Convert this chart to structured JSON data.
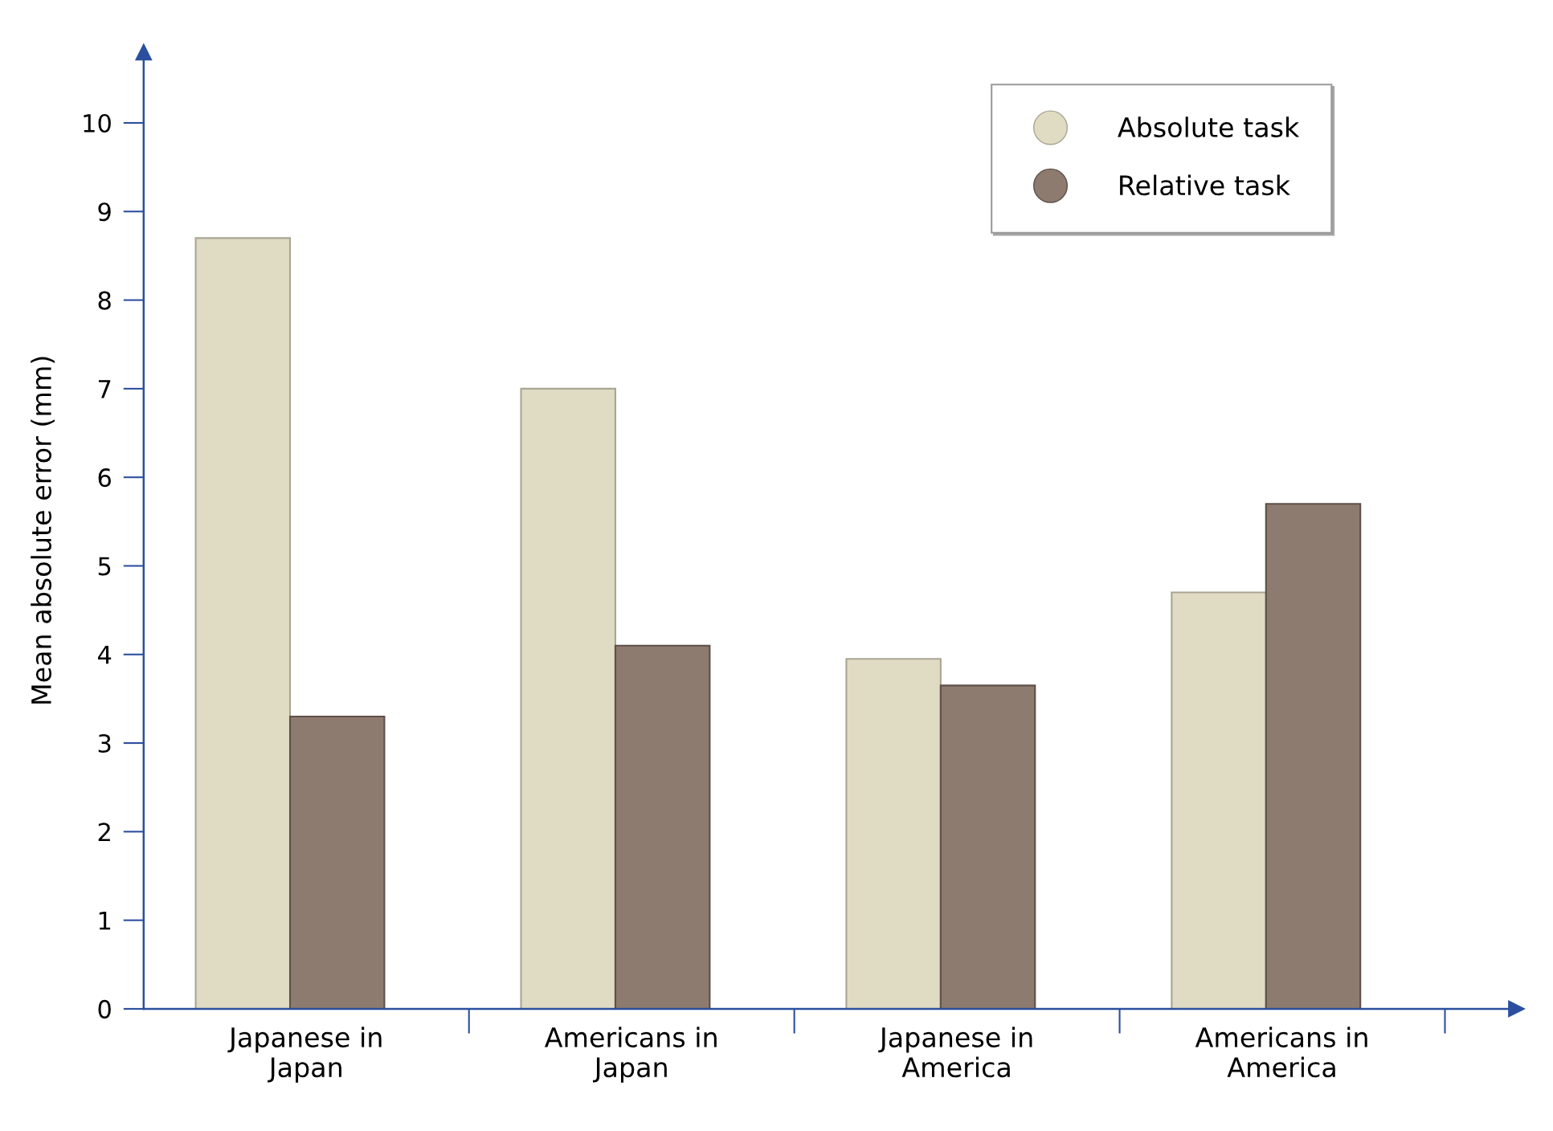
{
  "chart_data": {
    "type": "bar",
    "ylabel": "Mean absolute error (mm)",
    "categories": [
      "Japanese in\nJapan",
      "Americans in\nJapan",
      "Japanese in\nAmerica",
      "Americans in\nAmerica"
    ],
    "series": [
      {
        "name": "Absolute task",
        "color": "#e0dbc3",
        "values": [
          8.7,
          7.0,
          3.95,
          4.7
        ]
      },
      {
        "name": "Relative task",
        "color": "#8c7b6e",
        "values": [
          3.3,
          4.1,
          3.65,
          5.7
        ]
      }
    ],
    "ylim": [
      0,
      10.8
    ],
    "yticks": [
      0,
      1,
      2,
      3,
      4,
      5,
      6,
      7,
      8,
      9,
      10
    ],
    "grid": false,
    "legend": "top right"
  }
}
